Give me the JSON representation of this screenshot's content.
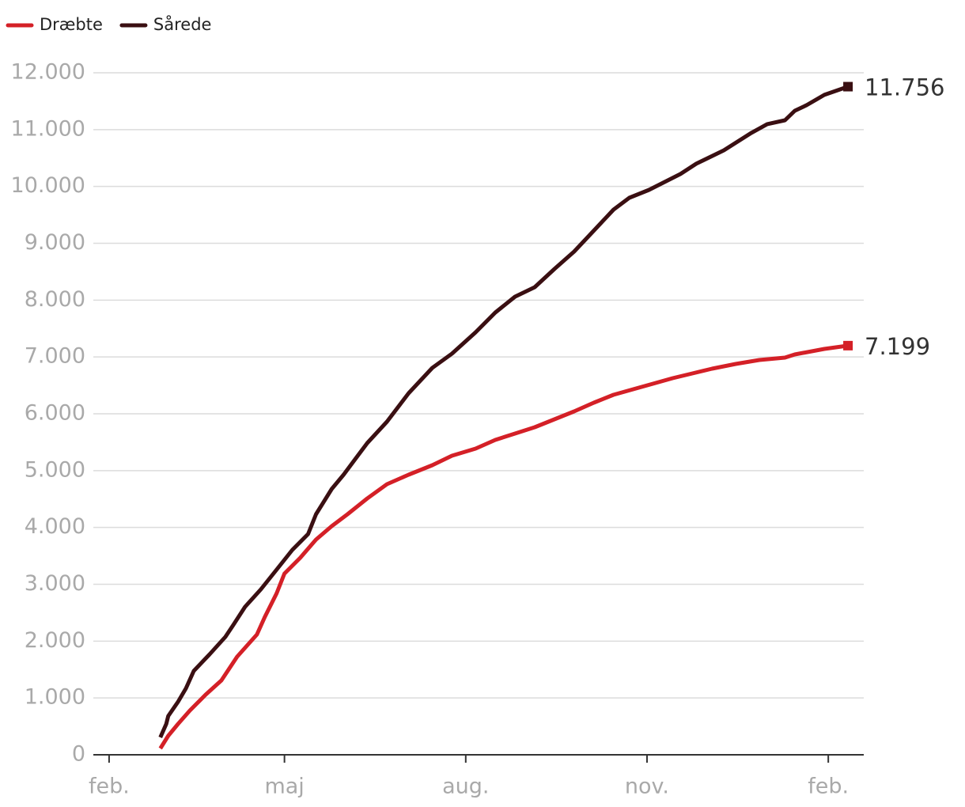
{
  "chart_data": {
    "type": "line",
    "x": [
      26,
      29,
      30,
      35,
      39,
      43,
      51,
      59,
      63,
      69,
      77,
      85,
      93,
      101,
      105,
      113,
      119,
      125,
      131,
      141,
      152,
      164,
      174,
      186,
      196,
      206,
      216,
      226,
      236,
      244,
      256,
      264,
      274,
      290,
      298,
      312,
      326,
      334,
      343,
      348,
      354,
      363,
      375
    ],
    "series": [
      {
        "name": "Dræbte",
        "color": "#d42027",
        "x": [
          26,
          30,
          35,
          41,
          49,
          57,
          65,
          75,
          79,
          85,
          89,
          97,
          105,
          113,
          121,
          131,
          141,
          152,
          164,
          174,
          186,
          196,
          206,
          216,
          226,
          236,
          246,
          256,
          266,
          276,
          286,
          296,
          306,
          318,
          330,
          343,
          348,
          363,
          375
        ],
        "values": [
          111,
          334,
          543,
          780,
          1058,
          1309,
          1726,
          2116,
          2422,
          2840,
          3188,
          3467,
          3787,
          4023,
          4232,
          4511,
          4761,
          4928,
          5095,
          5262,
          5388,
          5541,
          5652,
          5764,
          5903,
          6042,
          6195,
          6334,
          6432,
          6529,
          6627,
          6710,
          6794,
          6877,
          6947,
          6989,
          7044,
          7142,
          7199
        ],
        "value_labels": [
          null,
          null,
          null,
          null,
          null,
          null,
          null,
          null,
          null,
          null,
          null,
          null,
          null,
          null,
          null,
          null,
          null,
          null,
          null,
          null,
          null,
          null,
          null,
          null,
          null,
          null,
          null,
          null,
          null,
          null,
          null,
          null,
          null,
          null,
          null,
          null,
          null,
          null,
          "7.199"
        ]
      },
      {
        "name": "Sårede",
        "color": "#3a0f12",
        "x": [
          26,
          29,
          30,
          35,
          39,
          43,
          51,
          59,
          63,
          69,
          77,
          85,
          93,
          101,
          105,
          113,
          119,
          125,
          131,
          141,
          152,
          164,
          174,
          186,
          196,
          206,
          216,
          226,
          236,
          244,
          256,
          264,
          274,
          290,
          298,
          312,
          326,
          334,
          343,
          348,
          354,
          363,
          375
        ],
        "values": [
          306,
          543,
          682,
          933,
          1169,
          1476,
          1768,
          2074,
          2283,
          2603,
          2910,
          3258,
          3606,
          3884,
          4232,
          4678,
          4928,
          5207,
          5485,
          5861,
          6362,
          6808,
          7058,
          7434,
          7782,
          8061,
          8228,
          8548,
          8854,
          9147,
          9592,
          9801,
          9940,
          10219,
          10400,
          10636,
          10943,
          11096,
          11165,
          11332,
          11430,
          11611,
          11756
        ],
        "value_labels": [
          null,
          null,
          null,
          null,
          null,
          null,
          null,
          null,
          null,
          null,
          null,
          null,
          null,
          null,
          null,
          null,
          null,
          null,
          null,
          null,
          null,
          null,
          null,
          null,
          null,
          null,
          null,
          null,
          null,
          null,
          null,
          null,
          null,
          null,
          null,
          null,
          null,
          null,
          null,
          null,
          null,
          null,
          "11.756"
        ]
      }
    ],
    "xlim": [
      -8,
      383
    ],
    "xticks": [
      {
        "value": 0,
        "label": "feb."
      },
      {
        "value": 89,
        "label": "maj"
      },
      {
        "value": 181,
        "label": "aug."
      },
      {
        "value": 273,
        "label": "nov."
      },
      {
        "value": 365,
        "label": "feb."
      }
    ],
    "ylim": [
      0,
      12000
    ],
    "yticks": [
      0,
      {
        "value": 1000,
        "label": "1.000"
      },
      {
        "value": 2000,
        "label": "2.000"
      },
      {
        "value": 3000,
        "label": "3.000"
      },
      {
        "value": 4000,
        "label": "4.000"
      },
      {
        "value": 5000,
        "label": "5.000"
      },
      {
        "value": 6000,
        "label": "6.000"
      },
      {
        "value": 7000,
        "label": "7.000"
      },
      {
        "value": 8000,
        "label": "8.000"
      },
      {
        "value": 9000,
        "label": "9.000"
      },
      {
        "value": 10000,
        "label": "10.000"
      },
      {
        "value": 11000,
        "label": "11.000"
      },
      {
        "value": 12000,
        "label": "12.000"
      }
    ],
    "grid": true,
    "legend": "top-left"
  }
}
